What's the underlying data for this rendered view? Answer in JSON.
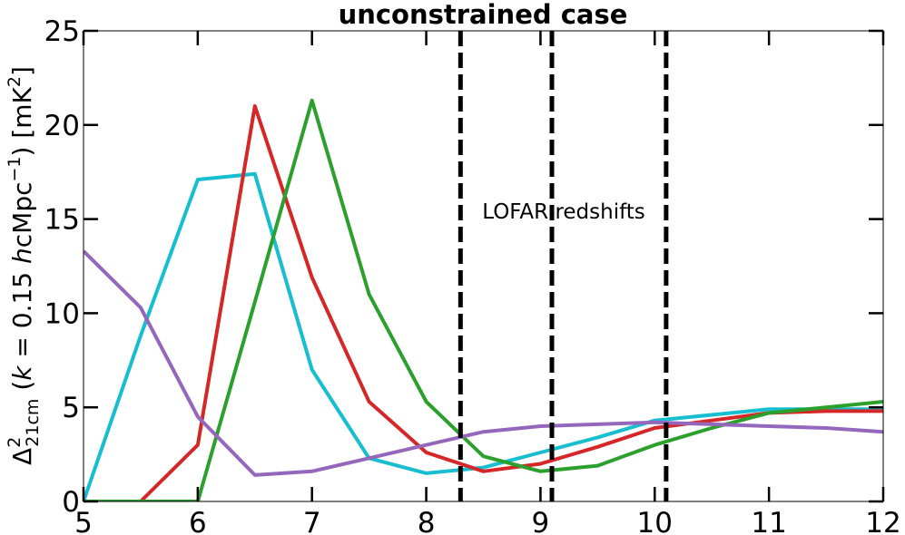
{
  "chart_data": {
    "type": "line",
    "title": "unconstrained case",
    "ylabel": {
      "delta": "Δ",
      "sup": "2",
      "sub": "21cm",
      "open": " (",
      "k": "k",
      "eq": " = 0.15 ",
      "h": "h",
      "unit": "cMpc",
      "sup2": "−1",
      "close": ") [mK",
      "sup3": "2",
      "end": "]"
    },
    "xlabel": "",
    "xlim": [
      5,
      12
    ],
    "ylim": [
      0,
      25
    ],
    "xticks": [
      5,
      6,
      7,
      8,
      9,
      10,
      11,
      12
    ],
    "yticks": [
      0,
      5,
      10,
      15,
      20,
      25
    ],
    "grid": false,
    "vlines": [
      8.3,
      9.1,
      10.1
    ],
    "annotation": "LOFAR redshifts",
    "series": [
      {
        "color": "#17becf",
        "x": [
          5.0,
          5.5,
          6.0,
          6.5,
          7.0,
          7.5,
          8.0,
          8.5,
          9.0,
          9.5,
          10.0,
          10.5,
          11.0,
          11.5,
          12.0
        ],
        "y": [
          0.0,
          8.8,
          17.1,
          17.4,
          7.0,
          2.3,
          1.5,
          1.8,
          2.6,
          3.4,
          4.3,
          4.6,
          4.9,
          4.9,
          4.9
        ]
      },
      {
        "color": "#d62728",
        "x": [
          5.0,
          5.5,
          6.0,
          6.5,
          7.0,
          7.5,
          8.0,
          8.5,
          9.0,
          9.5,
          10.0,
          10.5,
          11.0,
          11.5,
          12.0
        ],
        "y": [
          0.0,
          0.0,
          3.0,
          21.0,
          11.9,
          5.3,
          2.6,
          1.6,
          2.0,
          2.9,
          3.9,
          4.3,
          4.7,
          4.8,
          4.8
        ]
      },
      {
        "color": "#2ca02c",
        "x": [
          5.0,
          5.5,
          6.0,
          6.5,
          7.0,
          7.5,
          8.0,
          8.5,
          9.0,
          9.5,
          10.0,
          10.5,
          11.0,
          11.5,
          12.0
        ],
        "y": [
          0.0,
          0.0,
          0.0,
          10.6,
          21.3,
          11.0,
          5.3,
          2.4,
          1.6,
          1.9,
          3.0,
          3.9,
          4.7,
          5.0,
          5.3
        ]
      },
      {
        "color": "#9467bd",
        "x": [
          5.0,
          5.5,
          6.0,
          6.5,
          7.0,
          7.5,
          8.0,
          8.5,
          9.0,
          9.5,
          10.0,
          10.5,
          11.0,
          11.5,
          12.0
        ],
        "y": [
          13.3,
          10.3,
          4.5,
          1.4,
          1.6,
          2.3,
          3.0,
          3.7,
          4.0,
          4.1,
          4.2,
          4.1,
          4.0,
          3.9,
          3.7
        ]
      }
    ]
  }
}
